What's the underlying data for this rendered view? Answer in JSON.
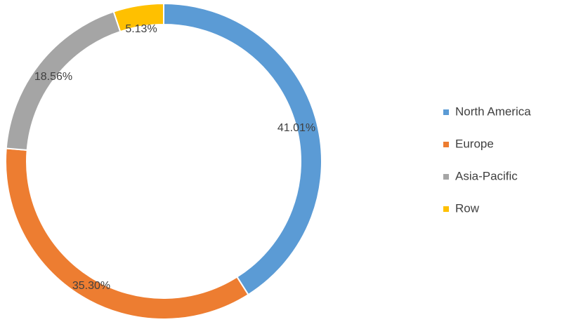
{
  "chart_data": {
    "type": "pie",
    "variant": "donut",
    "title": "",
    "legend_position": "right",
    "series": [
      {
        "name": "North America",
        "value": 41.01,
        "label": "41.01%",
        "color": "#5B9BD5"
      },
      {
        "name": "Europe",
        "value": 35.3,
        "label": "35.30%",
        "color": "#ED7D31"
      },
      {
        "name": "Asia-Pacific",
        "value": 18.56,
        "label": "18.56%",
        "color": "#A5A5A5"
      },
      {
        "name": "Row",
        "value": 5.13,
        "label": "5.13%",
        "color": "#FFC000"
      }
    ]
  }
}
